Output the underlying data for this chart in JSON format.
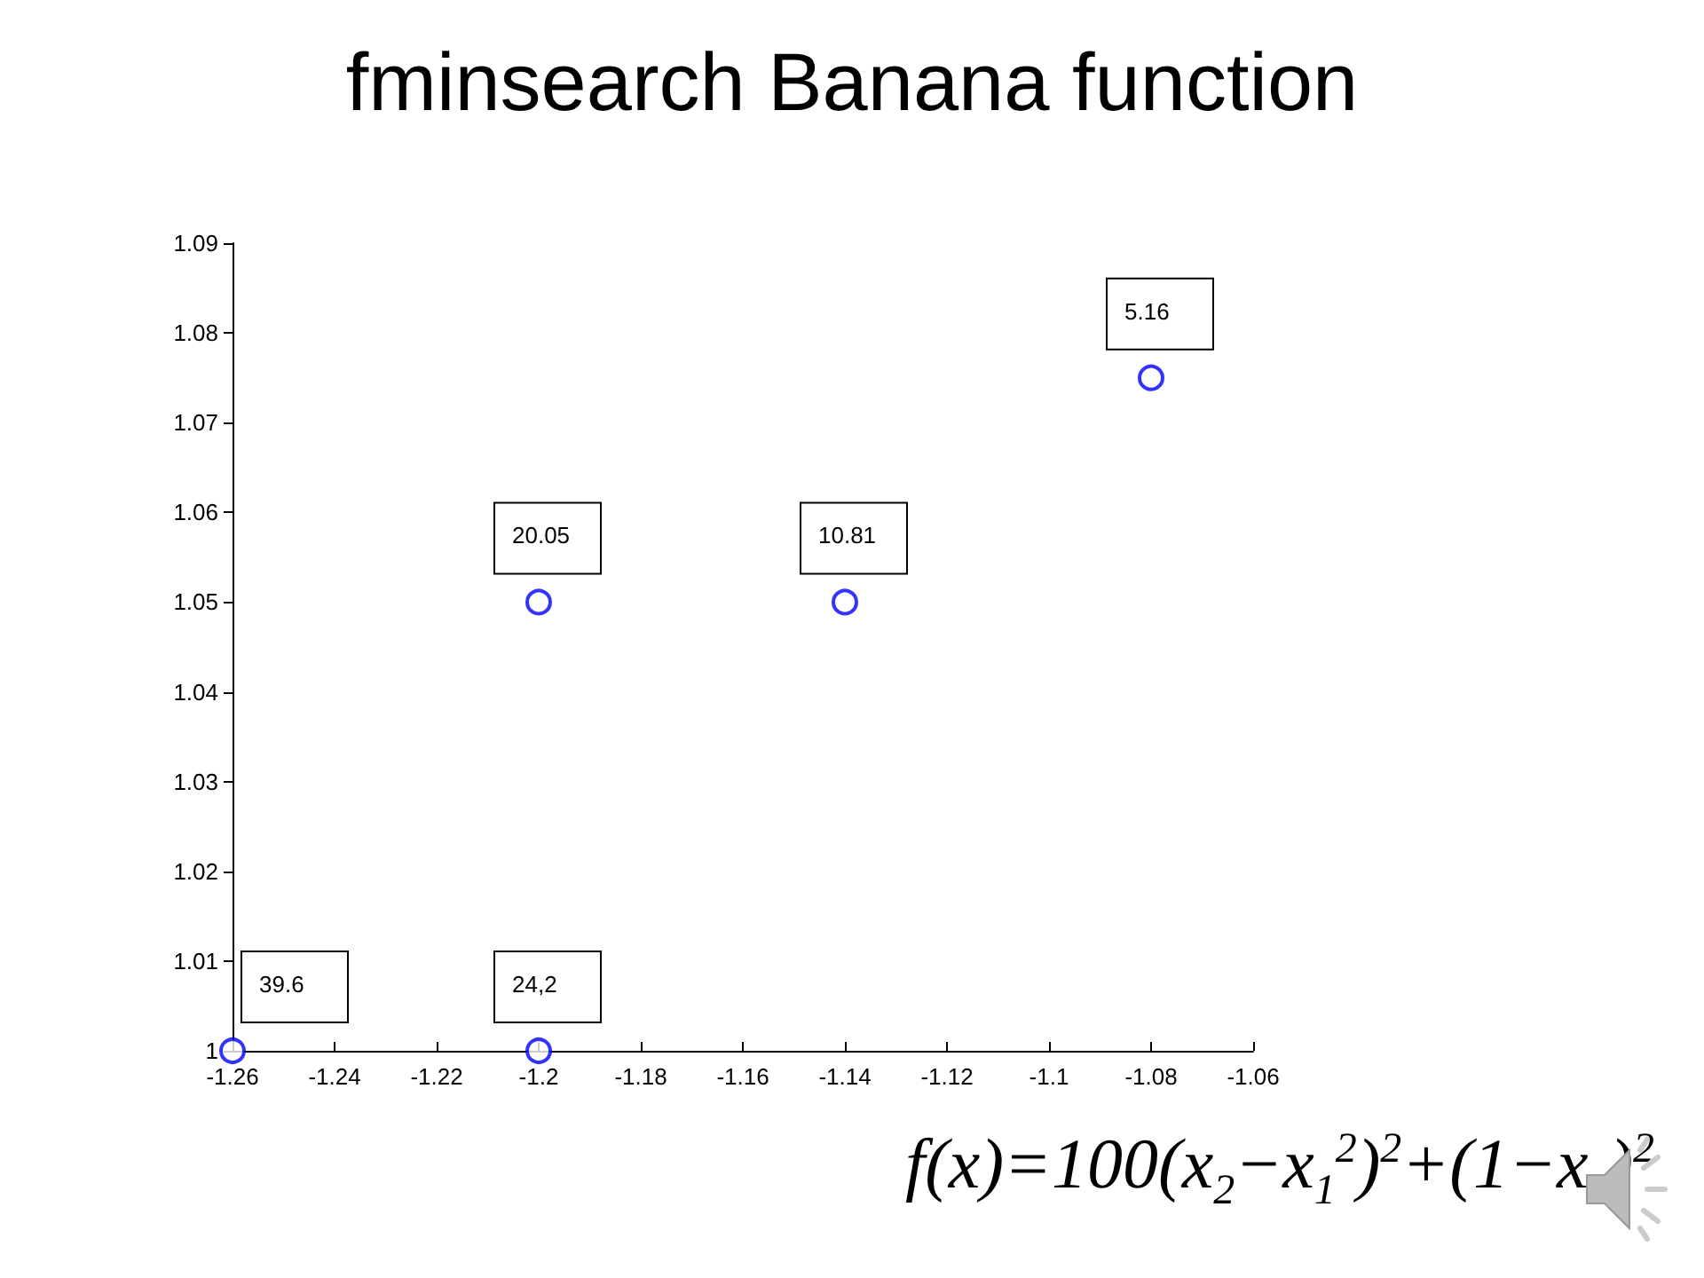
{
  "chart_data": {
    "type": "scatter",
    "title": "fminsearch Banana function",
    "x": [
      -1.26,
      -1.2,
      -1.2,
      -1.14,
      -1.08
    ],
    "series": [
      {
        "color": "#0000ff",
        "values": [
          1,
          1.05,
          1,
          1.05,
          1.075
        ]
      }
    ],
    "xlim": [
      -1.26,
      -1.06
    ],
    "xticks": [
      -1.26,
      -1.24,
      -1.22,
      -1.2,
      -1.18,
      -1.16,
      -1.14,
      -1.12,
      -1.1,
      -1.08,
      -1.06
    ],
    "ylim": [
      1,
      1.09
    ],
    "yticks": [
      1,
      1.01,
      1.02,
      1.03,
      1.04,
      1.05,
      1.06,
      1.07,
      1.08,
      1.09
    ],
    "annotations": [
      {
        "text": "39.6",
        "x": -1.26,
        "y": 1
      },
      {
        "text": "24,2",
        "x": -1.2,
        "y": 1
      },
      {
        "text": "20.05",
        "x": -1.2,
        "y": 1.05
      },
      {
        "text": "10.81",
        "x": -1.14,
        "y": 1.05
      },
      {
        "text": "5.16",
        "x": -1.08,
        "y": 1.075
      },
      "f(x)=100(x$_{2}$−x$_{1}$$^{2}$)$^{2}$+(1−x$_{1}$)$^{2}$"
    ],
    "grid": false,
    "marker": "circle"
  }
}
